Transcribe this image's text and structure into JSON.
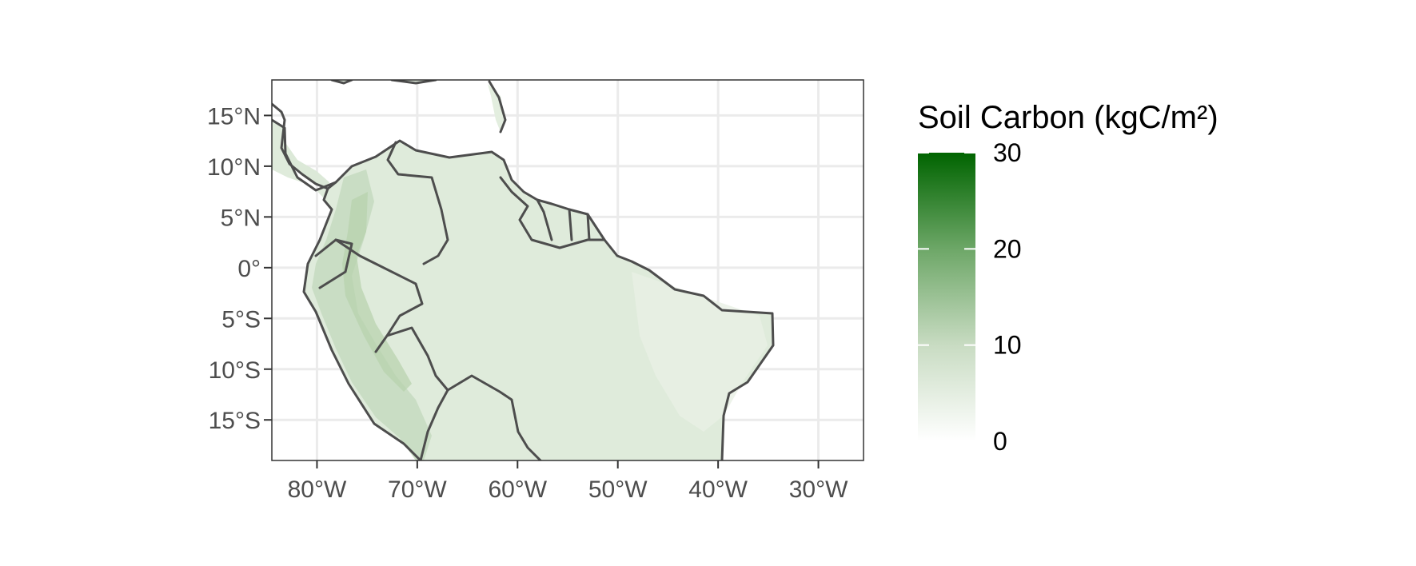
{
  "map": {
    "y_axis_labels": [
      "15°N",
      "10°N",
      "5°N",
      "0°",
      "5°S",
      "10°S",
      "15°S"
    ],
    "x_axis_labels": [
      "80°W",
      "70°W",
      "60°W",
      "50°W",
      "40°W",
      "30°W"
    ],
    "lat_values": [
      15,
      10,
      5,
      0,
      -5,
      -10,
      -15
    ],
    "lon_values": [
      -80,
      -70,
      -60,
      -50,
      -40,
      -30
    ],
    "extent": {
      "lon": [
        -84.5,
        -25.5
      ],
      "lat": [
        -19,
        18.5
      ]
    },
    "grid": true,
    "border_color": "#4d4d4d",
    "fill_low_color": "#e3eedf",
    "fill_high_color": "#c8dcc0"
  },
  "legend": {
    "title": "Soil Carbon (kgC/m²)",
    "labels": [
      "30",
      "20",
      "10",
      "0"
    ],
    "values": [
      30,
      20,
      10,
      0
    ],
    "range": [
      0,
      30
    ],
    "color_low": "#ffffff",
    "color_high": "#006400",
    "placement": "right"
  }
}
